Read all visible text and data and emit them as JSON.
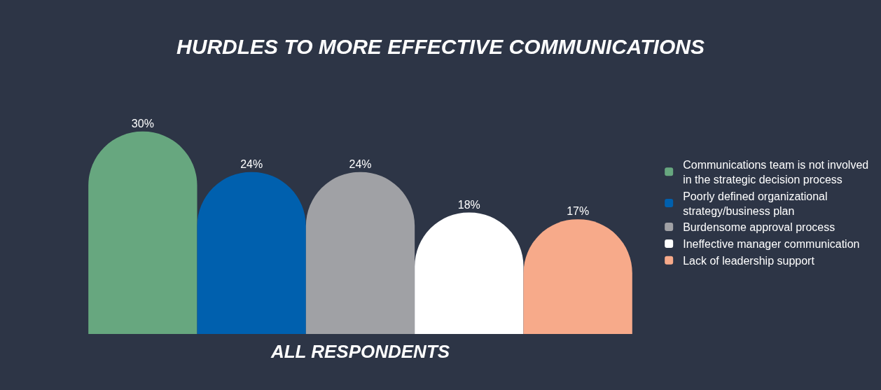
{
  "chart_data": {
    "type": "bar",
    "title": "HURDLES TO MORE EFFECTIVE COMMUNICATIONS",
    "xlabel": "ALL RESPONDENTS",
    "categories": [
      null
    ],
    "series": [
      {
        "name": "Communications team is not involved in the strategic decision process",
        "color": "#67a77f",
        "values": [
          30
        ],
        "value_labels": [
          "30%"
        ]
      },
      {
        "name": "Poorly defined organizational strategy/business plan",
        "color": "#0060ae",
        "values": [
          24
        ],
        "value_labels": [
          "24%"
        ]
      },
      {
        "name": "Burdensome approval process",
        "color": "#a0a1a5",
        "values": [
          24
        ],
        "value_labels": [
          "24%"
        ]
      },
      {
        "name": "Ineffective manager communication",
        "color": "#ffffff",
        "values": [
          18
        ],
        "value_labels": [
          "18%"
        ]
      },
      {
        "name": "Lack of leadership support",
        "color": "#f7aa8a",
        "values": [
          17
        ],
        "value_labels": [
          "17%"
        ]
      }
    ],
    "tick_labels": false,
    "grid": false,
    "legend": "right"
  }
}
